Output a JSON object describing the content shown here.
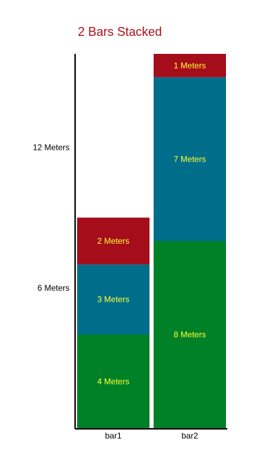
{
  "chart_data": {
    "type": "bar",
    "stacked": true,
    "title": "2 Bars Stacked",
    "xlabel": "",
    "ylabel": "",
    "categories": [
      "bar1",
      "bar2"
    ],
    "series": [
      {
        "color": "#008127",
        "values": [
          4,
          8
        ],
        "labels": [
          "4 Meters",
          "8 Meters"
        ]
      },
      {
        "color": "#006e8a",
        "values": [
          3,
          7
        ],
        "labels": [
          "3 Meters",
          "7 Meters"
        ]
      },
      {
        "color": "#a50d1b",
        "values": [
          2,
          1
        ],
        "labels": [
          "2 Meters",
          "1 Meters"
        ]
      }
    ],
    "yticks": [
      {
        "value": 6,
        "label": "6 Meters"
      },
      {
        "value": 12,
        "label": "12 Meters"
      }
    ],
    "ylim": [
      0,
      16
    ],
    "grid": false,
    "legend": "none",
    "colors": {
      "title": "#b0121b",
      "segment_label": "#ffff33",
      "axis": "#000000",
      "text": "#000000"
    }
  }
}
